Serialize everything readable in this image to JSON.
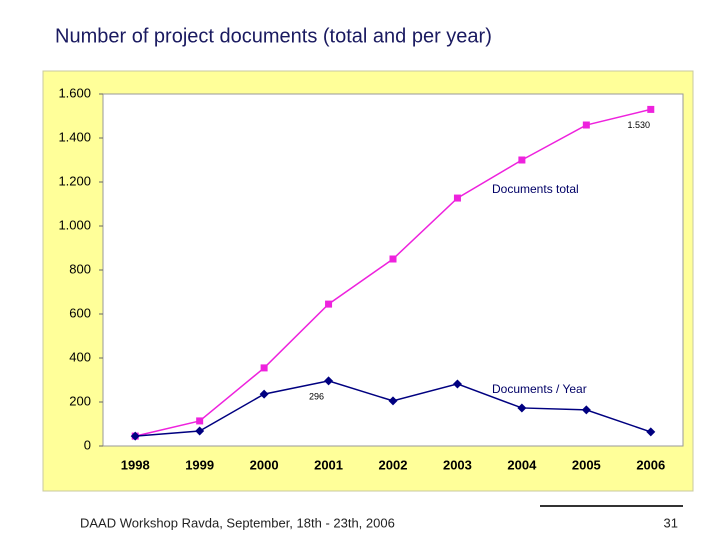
{
  "title": "Number of project documents (total and per year)",
  "chart_data": {
    "type": "line",
    "categories": [
      "1998",
      "1999",
      "2000",
      "2001",
      "2002",
      "2003",
      "2004",
      "2005",
      "2006"
    ],
    "series": [
      {
        "name": "Documents total",
        "color": "#ee22dd",
        "marker": "square",
        "values": [
          45,
          114,
          355,
          645,
          850,
          1127,
          1300,
          1459,
          1530
        ],
        "value_labels": [
          null,
          null,
          null,
          null,
          null,
          null,
          null,
          null,
          "1.530"
        ]
      },
      {
        "name": "Documents / Year",
        "color": "#000080",
        "marker": "diamond",
        "values": [
          45,
          68,
          236,
          296,
          205,
          282,
          173,
          164,
          64
        ],
        "value_labels": [
          null,
          null,
          null,
          "296",
          null,
          null,
          null,
          null,
          null
        ]
      }
    ],
    "ylim": [
      0,
      1600
    ],
    "yticks": [
      0,
      200,
      400,
      600,
      800,
      {
        "value": 1000,
        "label": "1.000"
      },
      {
        "value": 1200,
        "label": "1.200"
      },
      {
        "value": 1400,
        "label": "1.400"
      },
      {
        "value": 1600,
        "label": "1.600"
      }
    ],
    "grid": false
  },
  "footer": {
    "text": "DAAD Workshop Ravda, September, 18th - 23th, 2006",
    "page": "31"
  }
}
